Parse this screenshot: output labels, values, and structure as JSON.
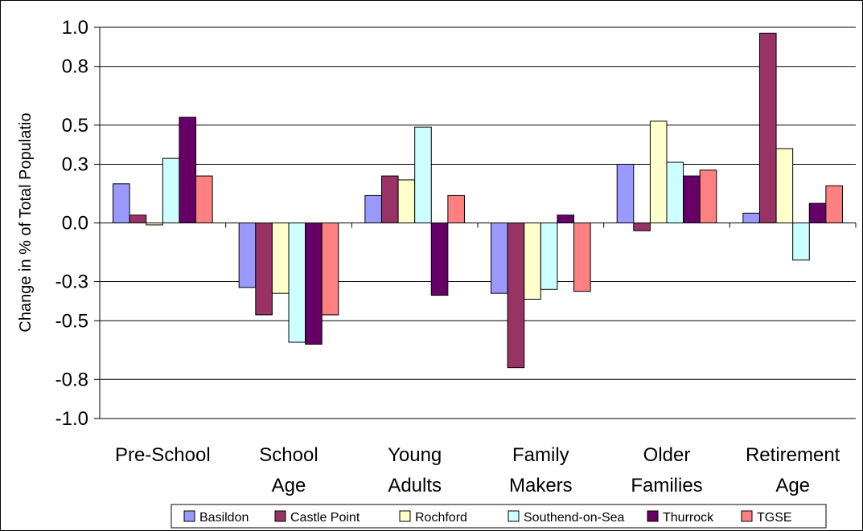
{
  "chart_data": {
    "type": "bar",
    "title": "",
    "xlabel": "",
    "ylabel": "Change in % of Total Populatio",
    "ylim": [
      -1.0,
      1.0
    ],
    "yticks": [
      1.0,
      0.8,
      0.5,
      0.3,
      0.0,
      -0.3,
      -0.5,
      -0.8,
      -1.0
    ],
    "ytick_labels": [
      "1.0",
      "0.8",
      "0.5",
      "0.3",
      "0.0",
      "-0.3",
      "-0.5",
      "-0.8",
      "-1.0"
    ],
    "grid": true,
    "legend_position": "bottom",
    "categories": [
      [
        "Pre-School"
      ],
      [
        "School",
        "Age"
      ],
      [
        "Young",
        "Adults"
      ],
      [
        "Family",
        "Makers"
      ],
      [
        "Older",
        "Families"
      ],
      [
        "Retirement",
        "Age"
      ]
    ],
    "series": [
      {
        "name": "Basildon",
        "color": "#9999ff",
        "values": [
          0.2,
          -0.33,
          0.14,
          -0.36,
          0.3,
          0.05
        ]
      },
      {
        "name": "Castle Point",
        "color": "#993366",
        "values": [
          0.04,
          -0.47,
          0.24,
          -0.74,
          -0.04,
          0.97
        ]
      },
      {
        "name": "Rochford",
        "color": "#ffffcc",
        "values": [
          -0.01,
          -0.36,
          0.22,
          -0.39,
          0.52,
          0.38
        ]
      },
      {
        "name": "Southend-on-Sea",
        "color": "#ccffff",
        "values": [
          0.33,
          -0.61,
          0.49,
          -0.34,
          0.31,
          -0.19
        ]
      },
      {
        "name": "Thurrock",
        "color": "#660066",
        "values": [
          0.54,
          -0.62,
          -0.37,
          0.04,
          0.24,
          0.1
        ]
      },
      {
        "name": "TGSE",
        "color": "#ff8080",
        "values": [
          0.24,
          -0.47,
          0.14,
          -0.35,
          0.27,
          0.19
        ]
      }
    ]
  }
}
